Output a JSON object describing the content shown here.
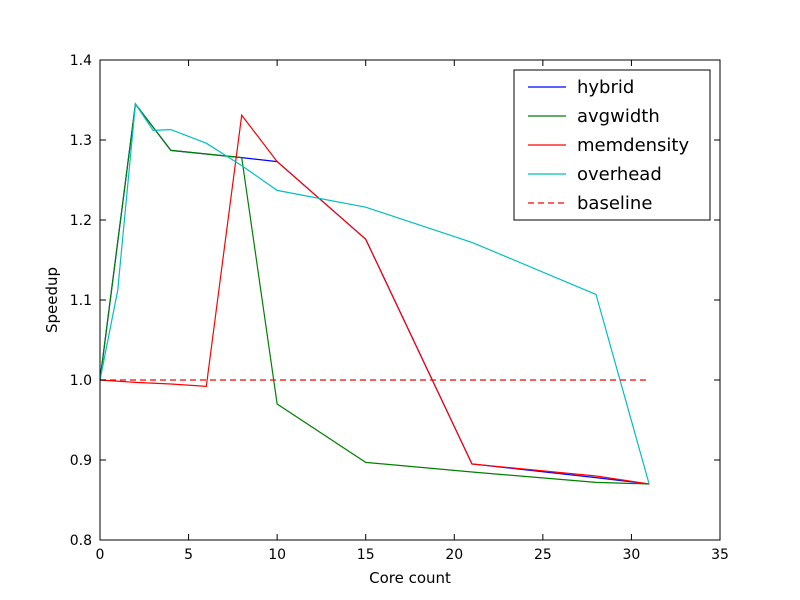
{
  "chart_data": {
    "type": "line",
    "title": "",
    "xlabel": "Core count",
    "ylabel": "Speedup",
    "xlim": [
      0,
      35
    ],
    "ylim": [
      0.8,
      1.4
    ],
    "xticks": [
      0,
      5,
      10,
      15,
      20,
      25,
      30,
      35
    ],
    "yticks": [
      0.8,
      0.9,
      1.0,
      1.1,
      1.2,
      1.3,
      1.4
    ],
    "xtick_labels": [
      "0",
      "5",
      "10",
      "15",
      "20",
      "25",
      "30",
      "35"
    ],
    "ytick_labels": [
      "0.8",
      "0.9",
      "1.0",
      "1.1",
      "1.2",
      "1.3",
      "1.4"
    ],
    "grid": false,
    "legend_position": "top-right",
    "series": [
      {
        "name": "hybrid",
        "color": "#0000ff",
        "dash": "solid",
        "x": [
          0,
          2,
          4,
          8,
          10,
          15,
          21,
          28,
          31
        ],
        "y": [
          1.0,
          1.345,
          1.287,
          1.278,
          1.273,
          1.176,
          0.895,
          0.878,
          0.87
        ]
      },
      {
        "name": "avgwidth",
        "color": "#008000",
        "dash": "solid",
        "x": [
          0,
          2,
          4,
          8,
          10,
          15,
          21,
          28,
          31
        ],
        "y": [
          1.0,
          1.345,
          1.287,
          1.278,
          0.97,
          0.897,
          0.885,
          0.872,
          0.87
        ]
      },
      {
        "name": "memdensity",
        "color": "#ff0000",
        "dash": "solid",
        "x": [
          0,
          2,
          4,
          6,
          8,
          10,
          15,
          21,
          28,
          31
        ],
        "y": [
          1.0,
          0.997,
          0.995,
          0.992,
          1.331,
          1.273,
          1.176,
          0.895,
          0.88,
          0.87
        ]
      },
      {
        "name": "overhead",
        "color": "#00bfbf",
        "dash": "solid",
        "x": [
          0,
          1,
          2,
          3,
          4,
          6,
          8,
          10,
          15,
          21,
          28,
          31
        ],
        "y": [
          1.0,
          1.112,
          1.345,
          1.312,
          1.313,
          1.296,
          1.268,
          1.237,
          1.216,
          1.172,
          1.107,
          0.87
        ]
      },
      {
        "name": "baseline",
        "color": "#ff0000",
        "dash": "dashed",
        "x": [
          0,
          31
        ],
        "y": [
          1.0,
          1.0
        ]
      }
    ]
  }
}
